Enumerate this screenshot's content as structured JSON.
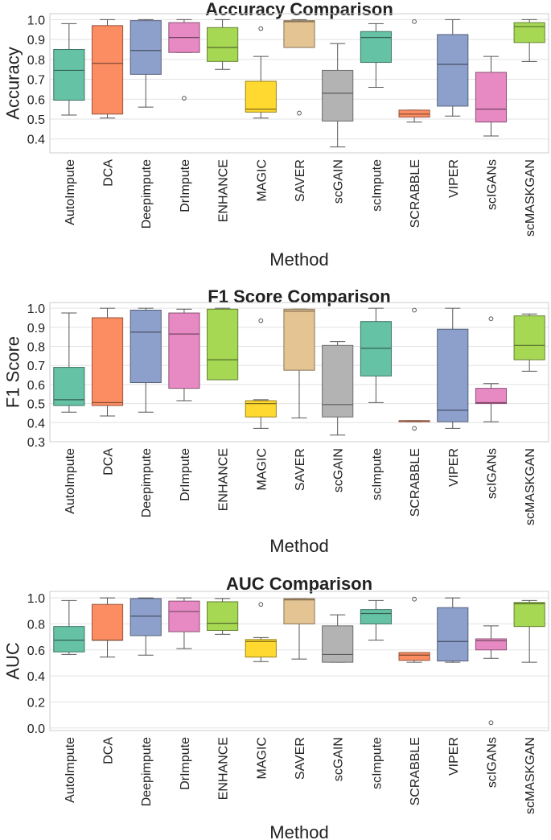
{
  "chart_data": [
    {
      "type": "box",
      "title": "Accuracy Comparison",
      "xlabel": "Method",
      "ylabel": "Accuracy",
      "ylim": [
        0.33,
        1.03
      ],
      "yticks": [
        "0.4",
        "0.5",
        "0.6",
        "0.7",
        "0.8",
        "0.9",
        "1.0"
      ],
      "grid": true,
      "categories": [
        "AutoImpute",
        "DCA",
        "Deepimpute",
        "DrImpute",
        "ENHANCE",
        "MAGIC",
        "SAVER",
        "scGAIN",
        "scImpute",
        "SCRABBLE",
        "VIPER",
        "scIGANs",
        "scMASKGAN"
      ],
      "boxes": [
        {
          "min": 0.52,
          "q1": 0.595,
          "median": 0.745,
          "q3": 0.85,
          "max": 0.98,
          "outliers": []
        },
        {
          "min": 0.505,
          "q1": 0.525,
          "median": 0.78,
          "q3": 0.97,
          "max": 1.0,
          "outliers": []
        },
        {
          "min": 0.56,
          "q1": 0.725,
          "median": 0.845,
          "q3": 0.995,
          "max": 1.0,
          "outliers": []
        },
        {
          "min": 0.835,
          "q1": 0.835,
          "median": 0.91,
          "q3": 0.985,
          "max": 1.0,
          "outliers": [
            0.605
          ]
        },
        {
          "min": 0.75,
          "q1": 0.79,
          "median": 0.86,
          "q3": 0.96,
          "max": 1.0,
          "outliers": []
        },
        {
          "min": 0.505,
          "q1": 0.535,
          "median": 0.55,
          "q3": 0.69,
          "max": 0.815,
          "outliers": [
            0.955
          ]
        },
        {
          "min": 0.86,
          "q1": 0.86,
          "median": 0.99,
          "q3": 0.995,
          "max": 1.0,
          "outliers": [
            0.53
          ]
        },
        {
          "min": 0.36,
          "q1": 0.49,
          "median": 0.63,
          "q3": 0.745,
          "max": 0.88,
          "outliers": []
        },
        {
          "min": 0.66,
          "q1": 0.785,
          "median": 0.91,
          "q3": 0.94,
          "max": 0.98,
          "outliers": []
        },
        {
          "min": 0.485,
          "q1": 0.51,
          "median": 0.525,
          "q3": 0.545,
          "max": 0.545,
          "outliers": [
            0.99
          ]
        },
        {
          "min": 0.515,
          "q1": 0.565,
          "median": 0.775,
          "q3": 0.925,
          "max": 1.0,
          "outliers": []
        },
        {
          "min": 0.415,
          "q1": 0.485,
          "median": 0.55,
          "q3": 0.735,
          "max": 0.815,
          "outliers": []
        },
        {
          "min": 0.79,
          "q1": 0.885,
          "median": 0.965,
          "q3": 0.985,
          "max": 1.0,
          "outliers": []
        }
      ]
    },
    {
      "type": "box",
      "title": "F1 Score Comparison",
      "xlabel": "Method",
      "ylabel": "F1 Score",
      "ylim": [
        0.3,
        1.03
      ],
      "yticks": [
        "0.3",
        "0.4",
        "0.5",
        "0.6",
        "0.7",
        "0.8",
        "0.9",
        "1.0"
      ],
      "grid": true,
      "categories": [
        "AutoImpute",
        "DCA",
        "Deepimpute",
        "DrImpute",
        "ENHANCE",
        "MAGIC",
        "SAVER",
        "scGAIN",
        "scImpute",
        "SCRABBLE",
        "VIPER",
        "scIGANs",
        "scMASKGAN"
      ],
      "boxes": [
        {
          "min": 0.455,
          "q1": 0.49,
          "median": 0.52,
          "q3": 0.69,
          "max": 0.975,
          "outliers": []
        },
        {
          "min": 0.435,
          "q1": 0.49,
          "median": 0.505,
          "q3": 0.95,
          "max": 1.0,
          "outliers": []
        },
        {
          "min": 0.455,
          "q1": 0.61,
          "median": 0.875,
          "q3": 0.99,
          "max": 1.0,
          "outliers": []
        },
        {
          "min": 0.515,
          "q1": 0.58,
          "median": 0.865,
          "q3": 0.975,
          "max": 0.995,
          "outliers": []
        },
        {
          "min": 0.625,
          "q1": 0.625,
          "median": 0.73,
          "q3": 0.995,
          "max": 1.0,
          "outliers": []
        },
        {
          "min": 0.37,
          "q1": 0.43,
          "median": 0.5,
          "q3": 0.515,
          "max": 0.52,
          "outliers": [
            0.935
          ]
        },
        {
          "min": 0.425,
          "q1": 0.675,
          "median": 0.985,
          "q3": 0.995,
          "max": 0.995,
          "outliers": []
        },
        {
          "min": 0.335,
          "q1": 0.43,
          "median": 0.495,
          "q3": 0.805,
          "max": 0.825,
          "outliers": []
        },
        {
          "min": 0.505,
          "q1": 0.645,
          "median": 0.79,
          "q3": 0.93,
          "max": 1.0,
          "outliers": []
        },
        {
          "min": 0.405,
          "q1": 0.405,
          "median": 0.41,
          "q3": 0.41,
          "max": 0.41,
          "outliers": [
            0.37,
            0.99
          ]
        },
        {
          "min": 0.37,
          "q1": 0.405,
          "median": 0.465,
          "q3": 0.89,
          "max": 1.0,
          "outliers": []
        },
        {
          "min": 0.405,
          "q1": 0.5,
          "median": 0.505,
          "q3": 0.58,
          "max": 0.605,
          "outliers": [
            0.945
          ]
        },
        {
          "min": 0.67,
          "q1": 0.73,
          "median": 0.805,
          "q3": 0.96,
          "max": 0.97,
          "outliers": []
        }
      ]
    },
    {
      "type": "box",
      "title": "AUC Comparison",
      "xlabel": "Method",
      "ylabel": "AUC",
      "ylim": [
        -0.02,
        1.05
      ],
      "yticks": [
        "0.0",
        "0.2",
        "0.4",
        "0.6",
        "0.8",
        "1.0"
      ],
      "grid": true,
      "categories": [
        "AutoImpute",
        "DCA",
        "Deepimpute",
        "DrImpute",
        "ENHANCE",
        "MAGIC",
        "SAVER",
        "scGAIN",
        "scImpute",
        "SCRABBLE",
        "VIPER",
        "scIGANs",
        "scMASKGAN"
      ],
      "boxes": [
        {
          "min": 0.565,
          "q1": 0.585,
          "median": 0.675,
          "q3": 0.78,
          "max": 0.98,
          "outliers": []
        },
        {
          "min": 0.545,
          "q1": 0.675,
          "median": 0.675,
          "q3": 0.95,
          "max": 1.0,
          "outliers": []
        },
        {
          "min": 0.56,
          "q1": 0.71,
          "median": 0.86,
          "q3": 0.995,
          "max": 1.0,
          "outliers": []
        },
        {
          "min": 0.61,
          "q1": 0.74,
          "median": 0.895,
          "q3": 0.975,
          "max": 1.0,
          "outliers": []
        },
        {
          "min": 0.72,
          "q1": 0.75,
          "median": 0.805,
          "q3": 0.97,
          "max": 0.995,
          "outliers": []
        },
        {
          "min": 0.51,
          "q1": 0.545,
          "median": 0.665,
          "q3": 0.68,
          "max": 0.695,
          "outliers": [
            0.95
          ]
        },
        {
          "min": 0.53,
          "q1": 0.8,
          "median": 0.985,
          "q3": 0.995,
          "max": 0.995,
          "outliers": []
        },
        {
          "min": 0.505,
          "q1": 0.505,
          "median": 0.565,
          "q3": 0.785,
          "max": 0.87,
          "outliers": []
        },
        {
          "min": 0.675,
          "q1": 0.8,
          "median": 0.88,
          "q3": 0.91,
          "max": 0.98,
          "outliers": []
        },
        {
          "min": 0.505,
          "q1": 0.52,
          "median": 0.56,
          "q3": 0.58,
          "max": 0.58,
          "outliers": [
            0.99
          ]
        },
        {
          "min": 0.505,
          "q1": 0.515,
          "median": 0.665,
          "q3": 0.925,
          "max": 1.0,
          "outliers": []
        },
        {
          "min": 0.535,
          "q1": 0.6,
          "median": 0.67,
          "q3": 0.685,
          "max": 0.785,
          "outliers": [
            0.04
          ]
        },
        {
          "min": 0.505,
          "q1": 0.78,
          "median": 0.955,
          "q3": 0.965,
          "max": 0.98,
          "outliers": []
        }
      ]
    }
  ],
  "palette": [
    "#66c2a5",
    "#fc8d62",
    "#8da0cb",
    "#e78ac3",
    "#a6d854",
    "#ffd92f",
    "#e5c494",
    "#b3b3b3",
    "#66c2a5",
    "#fc8d62",
    "#8da0cb",
    "#e78ac3",
    "#a6d854"
  ],
  "colors": {
    "grid": "#e3e3e3",
    "frame": "#cccccc",
    "whisker": "#555555",
    "text": "#222222"
  }
}
